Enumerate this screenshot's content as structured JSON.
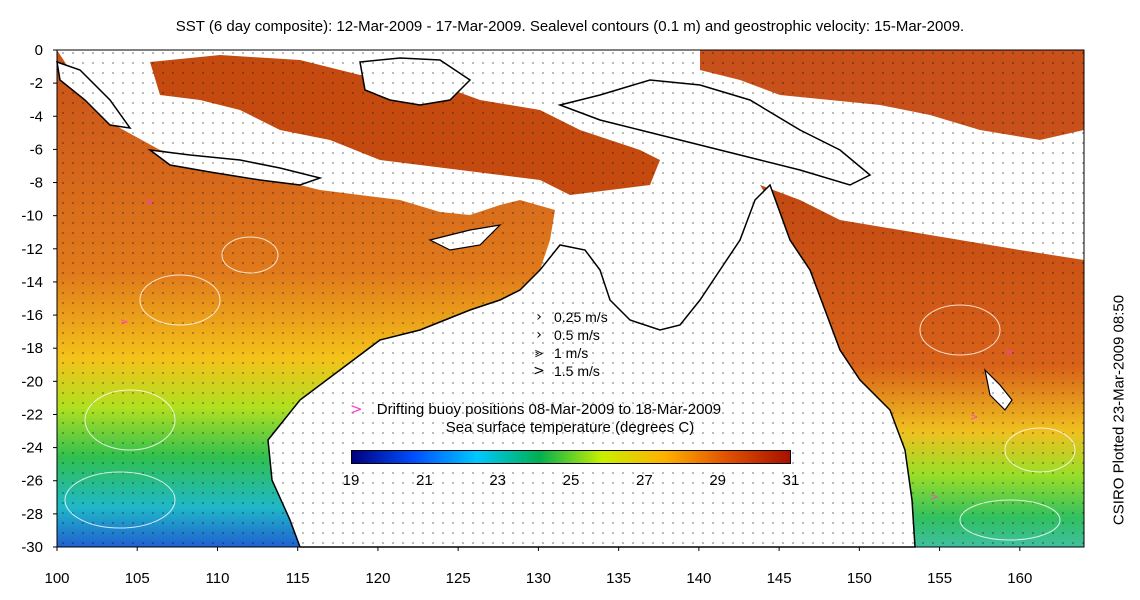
{
  "title": "SST (6 day composite): 12-Mar-2009 - 17-Mar-2009. Sealevel contours (0.1 m) and geostrophic velocity: 15-Mar-2009.",
  "side_label": "CSIRO Plotted 23-Mar-2009 08:50",
  "axes": {
    "x_ticks": [
      "100",
      "105",
      "110",
      "115",
      "120",
      "125",
      "130",
      "135",
      "140",
      "145",
      "150",
      "155",
      "160"
    ],
    "y_ticks": [
      "0",
      "-2",
      "-4",
      "-6",
      "-8",
      "-10",
      "-12",
      "-14",
      "-16",
      "-18",
      "-20",
      "-22",
      "-24",
      "-26",
      "-28",
      "-30"
    ],
    "lon_range": [
      100,
      164
    ],
    "lat_range": [
      -30,
      0
    ]
  },
  "velocity_legend": [
    {
      "label": "0.25 m/s",
      "arrow": "›"
    },
    {
      "label": "0.5 m/s",
      "arrow": "›"
    },
    {
      "label": "1 m/s",
      "arrow": "⪢"
    },
    {
      "label": "1.5 m/s",
      "arrow": ">"
    }
  ],
  "buoy_legend": {
    "marker": ">",
    "label": "Drifting buoy positions 08-Mar-2009 to 18-Mar-2009"
  },
  "colorbar": {
    "title": "Sea surface temperature (degrees C)",
    "ticks": [
      "19",
      "21",
      "23",
      "25",
      "27",
      "29",
      "31"
    ],
    "colors": [
      "#000080",
      "#0050ff",
      "#00c8ff",
      "#00b050",
      "#c8f000",
      "#ffb000",
      "#e05000",
      "#a81000"
    ]
  },
  "colors": {
    "land": "#ffffff",
    "coast": "#000000",
    "warm_sst": "#c44a10",
    "contour": "#ffffff",
    "buoy": "#ff3bd0"
  }
}
